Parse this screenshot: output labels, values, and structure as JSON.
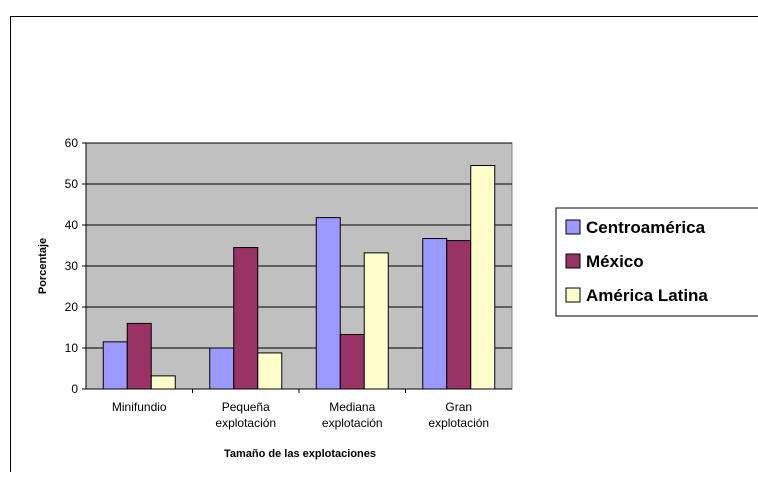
{
  "chart_data": {
    "type": "bar",
    "title": "",
    "xlabel": "Tamaño de las explotaciones",
    "ylabel": "Porcentaje",
    "categories": [
      [
        "Minifundio"
      ],
      [
        "Pequeña",
        "explotación"
      ],
      [
        "Mediana",
        "explotación"
      ],
      [
        "Gran",
        "explotación"
      ]
    ],
    "series": [
      {
        "name": "Centroamérica",
        "color": "#9999ff",
        "values": [
          11.5,
          10,
          41.8,
          36.7
        ]
      },
      {
        "name": "México",
        "color": "#993366",
        "values": [
          16,
          34.5,
          13.3,
          36.2
        ]
      },
      {
        "name": "América Latina",
        "color": "#ffffcc",
        "values": [
          3.2,
          8.8,
          33.2,
          54.5
        ]
      }
    ],
    "ylim": [
      0,
      60
    ],
    "yticks": [
      0,
      10,
      20,
      30,
      40,
      50,
      60
    ],
    "grid": true,
    "plot_background": "#c0c0c0",
    "legend_position": "right"
  }
}
